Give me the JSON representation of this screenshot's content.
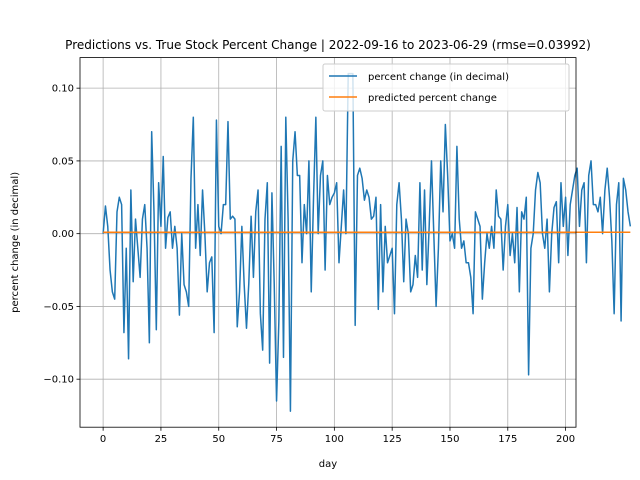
{
  "chart_data": {
    "type": "line",
    "title": "Predictions vs. True Stock Percent Change | 2022-09-16 to 2023-06-29 (rmse=0.03992)",
    "xlabel": "day",
    "ylabel": "percent change (in decimal)",
    "xlim": [
      -10,
      204.5
    ],
    "ylim": [
      -0.133,
      0.121
    ],
    "x_ticks": [
      0,
      25,
      50,
      75,
      100,
      125,
      150,
      175,
      200
    ],
    "y_ticks": [
      -0.1,
      -0.05,
      0.0,
      0.05,
      0.1
    ],
    "y_tick_labels": [
      "−0.10",
      "−0.05",
      "0.00",
      "0.05",
      "0.10"
    ],
    "grid": true,
    "legend_position": "upper right",
    "series": [
      {
        "name": "percent change (in decimal)",
        "color": "#1f77b4",
        "values": [
          0.0,
          0.019,
          0.005,
          -0.025,
          -0.04,
          -0.045,
          0.015,
          0.025,
          0.02,
          -0.068,
          -0.01,
          -0.086,
          0.03,
          -0.033,
          0.01,
          -0.01,
          -0.03,
          0.01,
          0.02,
          -0.01,
          -0.075,
          0.07,
          0.015,
          -0.066,
          0.035,
          0.005,
          0.053,
          -0.01,
          0.011,
          0.015,
          -0.01,
          0.005,
          -0.01,
          -0.056,
          0.0,
          -0.035,
          -0.04,
          -0.05,
          0.038,
          0.08,
          -0.01,
          0.02,
          -0.015,
          0.03,
          0.0,
          -0.04,
          -0.02,
          -0.016,
          -0.068,
          0.078,
          0.005,
          0.0,
          0.02,
          0.02,
          0.077,
          0.01,
          0.012,
          0.01,
          -0.064,
          -0.04,
          0.005,
          -0.035,
          -0.065,
          -0.034,
          0.012,
          -0.03,
          0.015,
          0.03,
          -0.055,
          -0.08,
          0.01,
          0.035,
          -0.089,
          0.028,
          -0.035,
          -0.115,
          -0.06,
          0.06,
          -0.085,
          0.08,
          0.01,
          -0.122,
          0.05,
          0.07,
          0.04,
          0.04,
          -0.02,
          0.02,
          0.0,
          0.05,
          -0.04,
          0.025,
          0.08,
          0.0,
          0.04,
          0.05,
          -0.025,
          0.04,
          0.02,
          0.025,
          0.028,
          0.035,
          -0.02,
          0.005,
          0.03,
          0.0,
          0.11,
          0.11,
          0.11,
          -0.063,
          0.04,
          0.045,
          0.038,
          0.023,
          0.03,
          0.025,
          0.01,
          0.012,
          0.025,
          -0.052,
          0.02,
          -0.04,
          0.005,
          -0.02,
          -0.015,
          -0.01,
          -0.055,
          0.02,
          0.035,
          0.01,
          -0.033,
          0.01,
          0.0,
          -0.04,
          -0.035,
          -0.015,
          -0.03,
          0.035,
          -0.025,
          0.03,
          -0.035,
          0.005,
          0.05,
          0.0,
          -0.05,
          -0.01,
          0.05,
          0.015,
          0.075,
          0.04,
          -0.005,
          0.0,
          -0.01,
          0.06,
          0.01,
          -0.01,
          -0.005,
          -0.02,
          -0.02,
          -0.03,
          -0.055,
          0.015,
          0.01,
          0.005,
          -0.045,
          -0.02,
          0.0,
          -0.01,
          0.005,
          -0.01,
          0.03,
          0.012,
          0.01,
          -0.025,
          0.005,
          0.02,
          -0.015,
          0.0,
          -0.02,
          0.018,
          -0.04,
          0.015,
          0.01,
          0.025,
          -0.097,
          -0.01,
          0.0,
          0.03,
          0.042,
          0.035,
          0.0,
          -0.01,
          0.01,
          -0.04,
          0.0,
          0.018,
          0.022,
          -0.02,
          0.035,
          0.005,
          0.025,
          -0.015,
          0.02,
          0.03,
          0.04,
          0.045,
          0.005,
          0.03,
          0.035,
          -0.02,
          0.04,
          0.05,
          0.02,
          0.02,
          0.015,
          0.025,
          0.0,
          0.03,
          0.045,
          0.025,
          -0.005,
          -0.055,
          0.02,
          0.035,
          -0.06,
          0.038,
          0.03,
          0.015,
          0.005
        ]
      },
      {
        "name": "predicted percent change",
        "color": "#ff7f0e",
        "values": [
          0.001
        ]
      }
    ]
  }
}
